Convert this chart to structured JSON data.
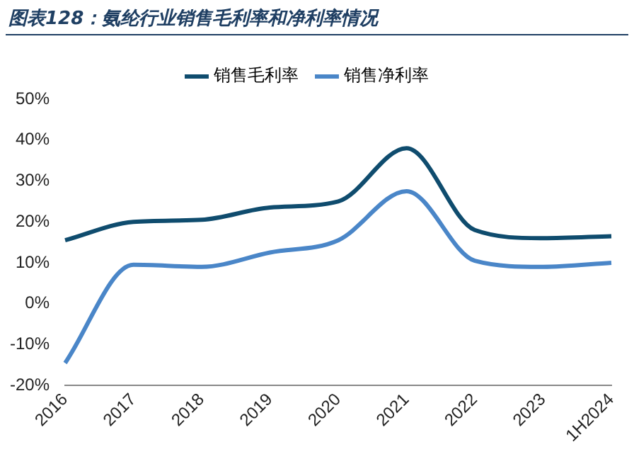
{
  "chart_data": {
    "type": "line",
    "title": "图表128：氨纶行业销售毛利率和净利率情况",
    "categories": [
      "2016",
      "2017",
      "2018",
      "2019",
      "2020",
      "2021",
      "2022",
      "2023",
      "1H2024"
    ],
    "series": [
      {
        "name": "销售毛利率",
        "color": "#0f4c6e",
        "values": [
          15.5,
          20,
          20.5,
          23.5,
          25,
          38,
          18,
          16,
          16.5
        ]
      },
      {
        "name": "销售净利率",
        "color": "#4a86c8",
        "values": [
          -14.5,
          9.5,
          9,
          12.5,
          15.5,
          27.5,
          10.5,
          9,
          10
        ]
      }
    ],
    "ylim": [
      -20,
      50
    ],
    "yticks": [
      {
        "value": -20,
        "label": "-20%"
      },
      {
        "value": -10,
        "label": "-10%"
      },
      {
        "value": 0,
        "label": "0%"
      },
      {
        "value": 10,
        "label": "10%"
      },
      {
        "value": 20,
        "label": "20%"
      },
      {
        "value": 30,
        "label": "30%"
      },
      {
        "value": 40,
        "label": "40%"
      },
      {
        "value": 50,
        "label": "50%"
      }
    ],
    "grid": false,
    "legend": "top",
    "marker": "none",
    "line_style": "solid"
  }
}
